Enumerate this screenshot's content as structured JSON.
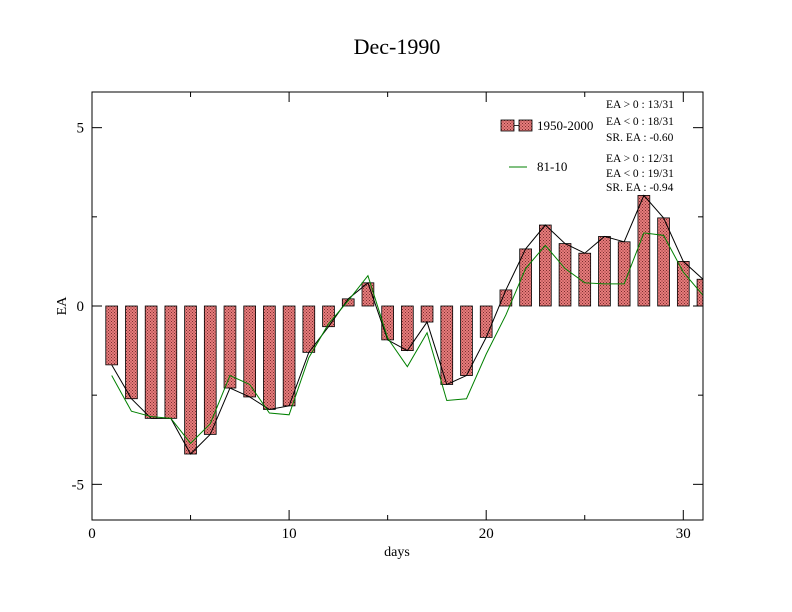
{
  "chart_data": {
    "type": "bar",
    "title": "Dec-1990",
    "xlabel": "days",
    "ylabel": "EA",
    "xlim": [
      0,
      31
    ],
    "ylim": [
      -6,
      6
    ],
    "xticks": [
      0,
      10,
      20,
      30
    ],
    "xtick_labels": [
      "0",
      "10",
      "20",
      "30"
    ],
    "yticks": [
      -5,
      0,
      5
    ],
    "ytick_labels": [
      "-5",
      "0",
      "5"
    ],
    "grid": false,
    "legend_position": "top-right",
    "x": [
      1,
      2,
      3,
      4,
      5,
      6,
      7,
      8,
      9,
      10,
      11,
      12,
      13,
      14,
      15,
      16,
      17,
      18,
      19,
      20,
      21,
      22,
      23,
      24,
      25,
      26,
      27,
      28,
      29,
      30,
      31
    ],
    "series": [
      {
        "name": "1950-2000",
        "type": "bar",
        "color": "#e77c7c",
        "values": [
          -1.65,
          -2.6,
          -3.15,
          -3.15,
          -4.15,
          -3.6,
          -2.3,
          -2.55,
          -2.9,
          -2.8,
          -1.3,
          -0.58,
          0.2,
          0.65,
          -0.95,
          -1.25,
          -0.45,
          -2.2,
          -1.95,
          -0.88,
          0.45,
          1.6,
          2.27,
          1.75,
          1.48,
          1.95,
          1.8,
          3.1,
          2.47,
          1.25,
          0.75
        ],
        "stats": [
          "EA > 0 : 13/31",
          "EA < 0 : 18/31",
          "SR. EA : -0.60"
        ]
      },
      {
        "name": "81-10",
        "type": "line",
        "color": "#008000",
        "values": [
          -1.95,
          -2.95,
          -3.1,
          -3.15,
          -3.85,
          -3.3,
          -1.95,
          -2.2,
          -3.0,
          -3.05,
          -1.45,
          -0.5,
          0.15,
          0.85,
          -0.9,
          -1.7,
          -0.75,
          -2.65,
          -2.6,
          -1.35,
          -0.25,
          1.05,
          1.7,
          1.05,
          0.65,
          0.62,
          0.62,
          2.05,
          1.98,
          0.95,
          0.3
        ],
        "stats": [
          "EA > 0 : 12/31",
          "EA < 0 : 19/31",
          "SR. EA : -0.94"
        ]
      }
    ]
  }
}
